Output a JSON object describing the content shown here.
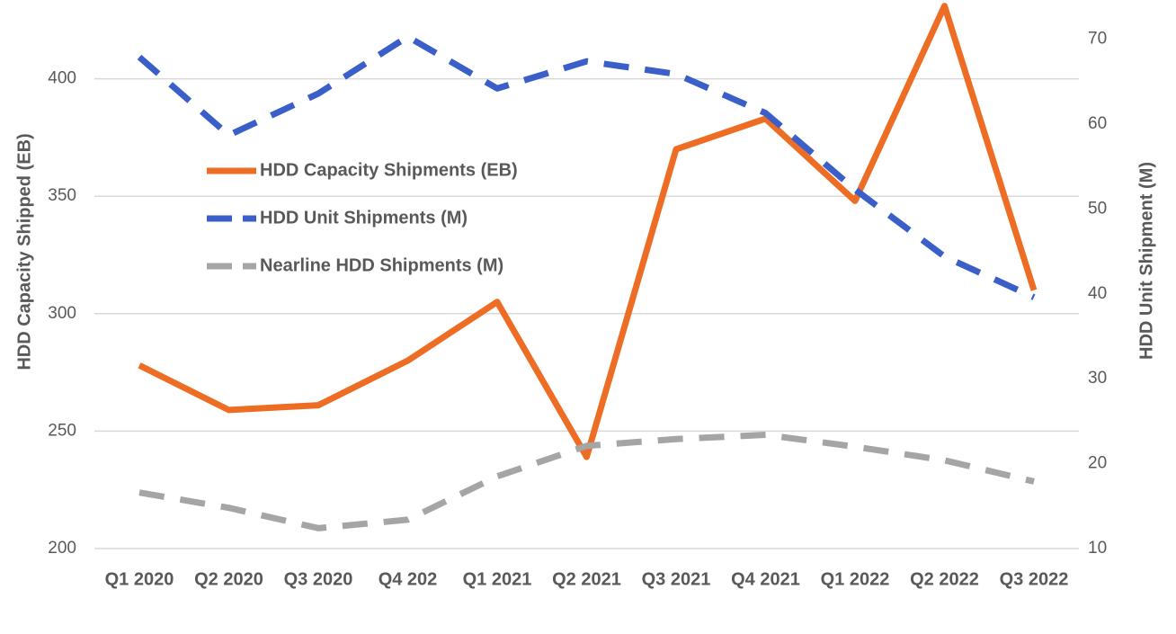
{
  "chart_data": {
    "type": "line",
    "y_label": "HDD Capacity Shipped (EB)",
    "y2_label": "HDD Unit Shipment (M)",
    "categories": [
      "Q1 2020",
      "Q2 2020",
      "Q3 2020",
      "Q4 202",
      "Q1 2021",
      "Q2 2021",
      "Q3 2021",
      "Q4 2021",
      "Q1 2022",
      "Q2 2022",
      "Q3 2022"
    ],
    "series": [
      {
        "name": "HDD Capacity Shipments (EB)",
        "color": "#ed6d25",
        "dash": "solid",
        "values": [
          278,
          259,
          261,
          280,
          305,
          239,
          370,
          383,
          348,
          431,
          310
        ]
      },
      {
        "name": "HDD Unit Shipments (M)",
        "color": "#3a5fc8",
        "dash": "dashed",
        "axis": "y2",
        "values": [
          67.9,
          58.7,
          63.6,
          70.3,
          64.2,
          67.4,
          65.9,
          61.3,
          52.3,
          44.4,
          39.6
        ]
      },
      {
        "name": "Nearline HDD Shipments (M)",
        "color": "#a5a5a5",
        "dash": "dashed",
        "axis": "y2",
        "values": [
          16.6,
          14.8,
          12.4,
          13.4,
          18.5,
          22.1,
          22.9,
          23.4,
          22.0,
          20.4,
          17.9
        ]
      }
    ],
    "ylim": [
      200,
      432
    ],
    "yticks": [
      200,
      250,
      300,
      350,
      400
    ],
    "y2lim": [
      10,
      74.2
    ],
    "y2ticks": [
      10,
      20,
      30,
      40,
      50,
      60,
      70
    ],
    "grid": true,
    "legend": "left"
  }
}
